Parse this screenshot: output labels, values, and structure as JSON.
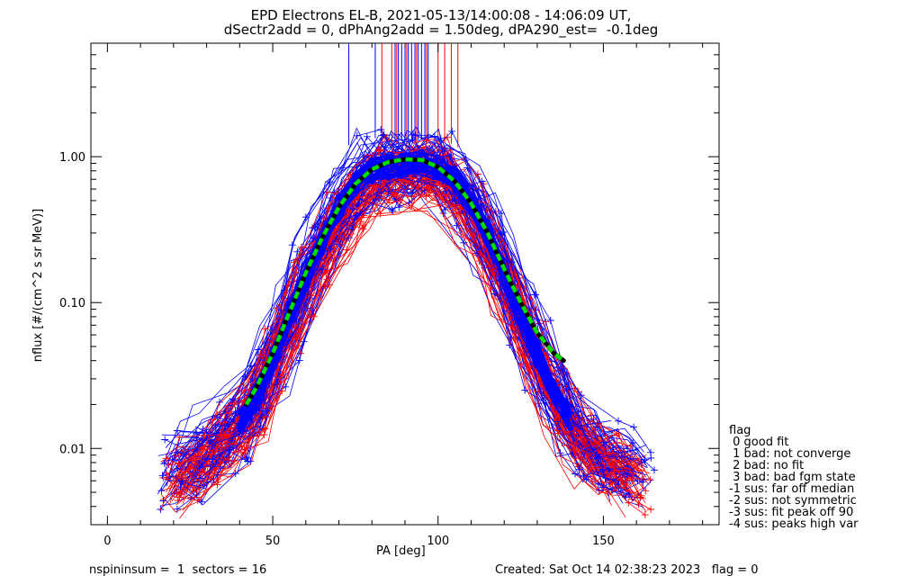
{
  "header": {
    "title_line1": "EPD Electrons EL-B, 2021-05-13/14:00:08 - 14:06:09 UT,",
    "title_line2": "dSectr2add = 0, dPhAng2add = 1.50deg, dPA290_est=  -0.1deg"
  },
  "footer": {
    "left": "nspininsum =  1  sectors = 16",
    "right": "Created: Sat Oct 14 02:38:23 2023   flag = 0"
  },
  "legend": {
    "title": "flag",
    "items": [
      " 0 good fit",
      " 1 bad: not converge",
      " 2 bad: no fit",
      " 3 bad: bad fgm state",
      "-1 sus: far off median",
      "-2 sus: not symmetric",
      "-3 sus: fit peak off 90",
      "-4 sus: peaks high var"
    ]
  },
  "chart_data": {
    "type": "line",
    "title": "EPD Electrons EL-B, 2021-05-13/14:00:08 - 14:06:09 UT, dSectr2add = 0, dPhAng2add = 1.50deg, dPA290_est=  -0.1deg",
    "xlabel": "PA [deg]",
    "ylabel": "nflux [#/(cm^2 s sr MeV)]",
    "xlim": [
      -5,
      185
    ],
    "ylim": [
      0.003,
      6.0
    ],
    "yscale": "log",
    "xticks": [
      0,
      50,
      100,
      150
    ],
    "xtick_labels": [
      "0",
      "50",
      "100",
      "150"
    ],
    "yticks": [
      0.01,
      0.1,
      1.0
    ],
    "ytick_labels": [
      "0.01",
      "0.10",
      "1.00"
    ],
    "colors": {
      "series_a": "#ff0000",
      "series_b": "#0000ff",
      "fit": "#00dd00",
      "axes": "#000000"
    },
    "series": [
      {
        "color": "red",
        "marker": "+",
        "note_values": "representative spectrum envelope",
        "x": [
          20,
          25,
          30,
          35,
          40,
          45,
          50,
          55,
          60,
          65,
          70,
          75,
          80,
          85,
          90,
          95,
          100,
          105,
          110,
          115,
          120,
          125,
          130,
          135,
          140,
          145,
          150,
          155,
          160
        ],
        "y": [
          0.006,
          0.007,
          0.009,
          0.011,
          0.014,
          0.02,
          0.04,
          0.07,
          0.13,
          0.22,
          0.35,
          0.5,
          0.65,
          0.72,
          0.76,
          0.78,
          0.74,
          0.6,
          0.42,
          0.25,
          0.14,
          0.075,
          0.04,
          0.022,
          0.014,
          0.01,
          0.008,
          0.007,
          0.006
        ]
      },
      {
        "color": "blue",
        "marker": "+",
        "note_values": "representative spectrum envelope",
        "x": [
          20,
          25,
          30,
          35,
          40,
          45,
          50,
          55,
          60,
          65,
          70,
          75,
          80,
          85,
          90,
          95,
          100,
          105,
          110,
          115,
          120,
          125,
          130,
          135,
          140,
          145,
          150,
          155,
          160
        ],
        "y": [
          0.007,
          0.008,
          0.01,
          0.012,
          0.015,
          0.022,
          0.04,
          0.075,
          0.15,
          0.27,
          0.45,
          0.65,
          0.8,
          0.85,
          0.88,
          0.9,
          0.85,
          0.7,
          0.5,
          0.3,
          0.16,
          0.085,
          0.045,
          0.025,
          0.016,
          0.011,
          0.009,
          0.008,
          0.007
        ]
      },
      {
        "color": "green",
        "style": "dashed",
        "x": [
          42,
          45,
          50,
          55,
          60,
          65,
          70,
          75,
          80,
          85,
          90,
          95,
          100,
          105,
          110,
          115,
          120,
          125,
          130,
          135,
          138
        ],
        "y": [
          0.02,
          0.026,
          0.045,
          0.085,
          0.16,
          0.28,
          0.45,
          0.65,
          0.82,
          0.92,
          0.96,
          0.95,
          0.85,
          0.68,
          0.48,
          0.3,
          0.17,
          0.1,
          0.062,
          0.045,
          0.04
        ]
      }
    ],
    "vertical_lines": [
      {
        "color": "blue",
        "x": [
          73,
          81,
          87,
          88,
          89,
          90,
          91,
          92,
          93,
          94,
          95,
          96,
          97
        ]
      },
      {
        "color": "red",
        "x": [
          83,
          86,
          87.5,
          90.5,
          93.5,
          96.5,
          100,
          102,
          104,
          106
        ]
      }
    ]
  }
}
